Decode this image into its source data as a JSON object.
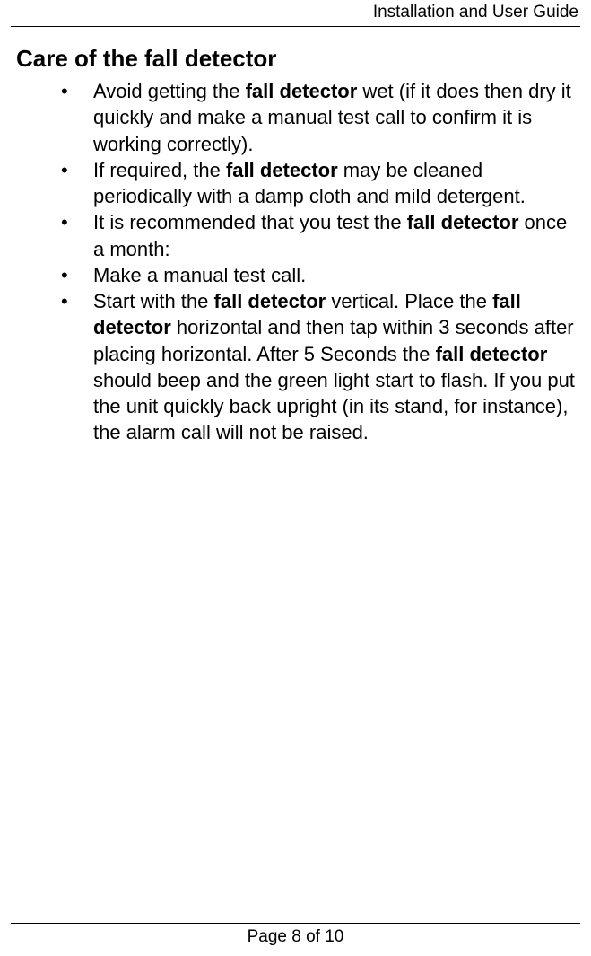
{
  "header": {
    "title": "Installation and User Guide"
  },
  "heading": "Care of the fall detector",
  "bullets": {
    "item1": {
      "pre": "Avoid getting the ",
      "bold1": "fall detector",
      "post": " wet (if it does then dry it quickly and make a manual test call to confirm it is working correctly)."
    },
    "item2": {
      "pre": "If required, the ",
      "bold1": "fall detector",
      "post": " may be cleaned periodically with a damp cloth and mild detergent."
    },
    "item3": {
      "pre": "It is recommended that you test the ",
      "bold1": "fall detector",
      "post": " once a month:"
    },
    "item4": {
      "text": "Make a manual test call."
    },
    "item5": {
      "p1": "Start with the ",
      "b1": "fall detector",
      "p2": " vertical. Place the ",
      "b2": "fall detector",
      "p3": " horizontal and then tap within 3 seconds after placing horizontal. After 5 Seconds the ",
      "b3": "fall detector",
      "p4": " should beep and the green light start to flash. If you put the unit quickly back upright (in its stand, for instance), the alarm call will not be raised."
    }
  },
  "footer": {
    "text": "Page 8 of 10"
  },
  "styles": {
    "background_color": "#ffffff",
    "text_color": "#000000",
    "border_color": "#000000",
    "heading_fontsize": 26,
    "body_fontsize": 22,
    "header_fontsize": 19,
    "footer_fontsize": 19
  }
}
